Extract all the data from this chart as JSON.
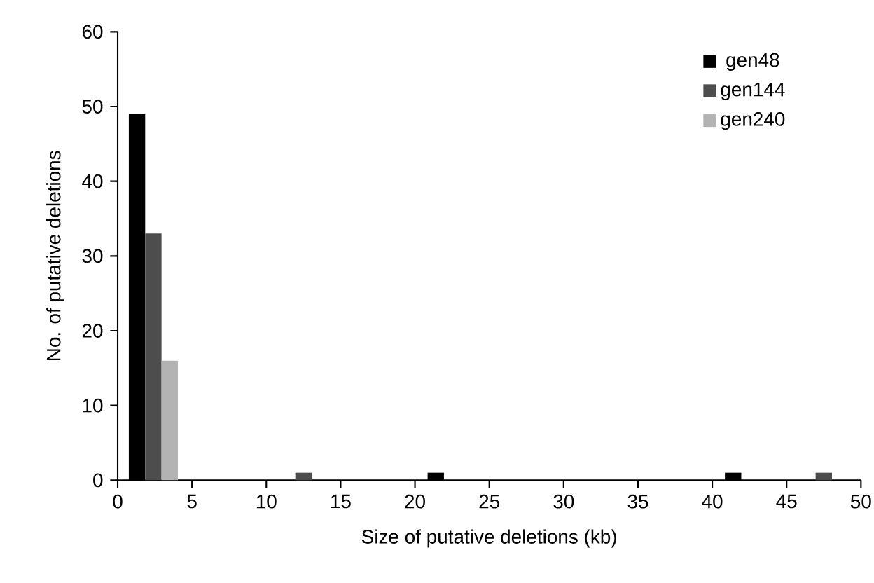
{
  "chart_data": {
    "type": "bar",
    "xlabel": "Size of putative deletions (kb)",
    "ylabel": "No. of putative deletions",
    "xlim": [
      0,
      50
    ],
    "ylim": [
      0,
      60
    ],
    "xticks": [
      0,
      5,
      10,
      15,
      20,
      25,
      30,
      35,
      40,
      45,
      50
    ],
    "yticks": [
      0,
      10,
      20,
      30,
      40,
      50,
      60
    ],
    "grid": false,
    "legend": "top right",
    "series": [
      {
        "name": "gen48",
        "color": "#000000",
        "x": [
          1.3,
          21.4,
          41.4
        ],
        "values": [
          49,
          1,
          1
        ]
      },
      {
        "name": "gen144",
        "color": "#4d4d4d",
        "x": [
          2.4,
          12.5,
          47.5
        ],
        "values": [
          33,
          1,
          1
        ]
      },
      {
        "name": "gen240",
        "color": "#b3b3b3",
        "x": [
          3.5
        ],
        "values": [
          16
        ]
      }
    ]
  }
}
